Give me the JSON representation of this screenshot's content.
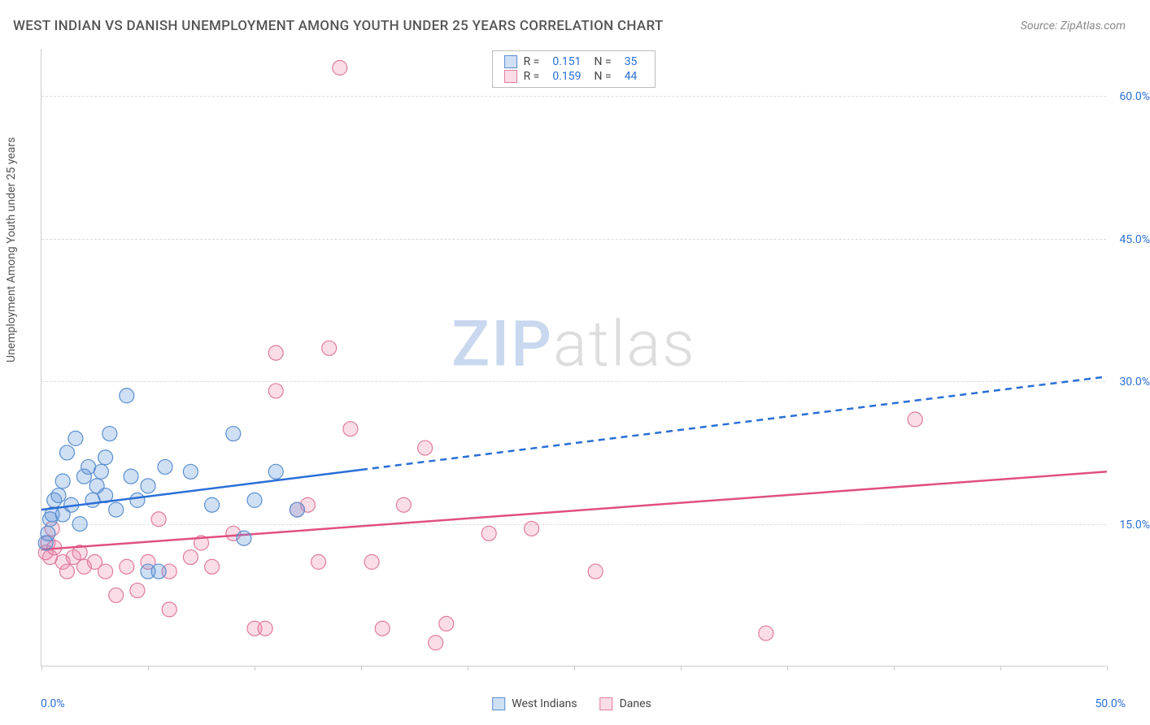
{
  "title": "WEST INDIAN VS DANISH UNEMPLOYMENT AMONG YOUTH UNDER 25 YEARS CORRELATION CHART",
  "source": "Source: ZipAtlas.com",
  "y_axis_title": "Unemployment Among Youth under 25 years",
  "watermark": {
    "part1": "ZIP",
    "part2": "atlas"
  },
  "chart": {
    "type": "scatter",
    "background_color": "#ffffff",
    "grid_color": "#dddddd",
    "axis_color": "#cccccc",
    "tick_label_color": "#2a6fd6",
    "xlim": [
      0,
      50
    ],
    "ylim": [
      0,
      65
    ],
    "x_ticks": [
      0,
      5,
      10,
      15,
      20,
      25,
      30,
      35,
      40,
      45,
      50
    ],
    "x_start_label": "0.0%",
    "x_end_label": "50.0%",
    "y_grid": [
      {
        "value": 15,
        "label": "15.0%"
      },
      {
        "value": 30,
        "label": "30.0%"
      },
      {
        "value": 45,
        "label": "45.0%"
      },
      {
        "value": 60,
        "label": "60.0%"
      }
    ],
    "marker_radius": 9,
    "marker_stroke_width": 1.2,
    "line_width": 2.5,
    "series": [
      {
        "name": "West Indians",
        "fill": "rgba(96,150,220,0.30)",
        "stroke": "#5a8fd0",
        "line_color": "#2a6fd6",
        "line_solid_to_x": 15,
        "R": "0.151",
        "N": "35",
        "trend": {
          "x1": 0,
          "y1": 16.5,
          "x2": 50,
          "y2": 30.5
        },
        "points": [
          [
            0.2,
            13.0
          ],
          [
            0.3,
            14.0
          ],
          [
            0.4,
            15.5
          ],
          [
            0.5,
            16.0
          ],
          [
            0.6,
            17.5
          ],
          [
            0.8,
            18.0
          ],
          [
            1.0,
            19.5
          ],
          [
            1.0,
            16.0
          ],
          [
            1.2,
            22.5
          ],
          [
            1.4,
            17.0
          ],
          [
            1.6,
            24.0
          ],
          [
            1.8,
            15.0
          ],
          [
            2.0,
            20.0
          ],
          [
            2.2,
            21.0
          ],
          [
            2.4,
            17.5
          ],
          [
            2.6,
            19.0
          ],
          [
            2.8,
            20.5
          ],
          [
            3.0,
            18.0
          ],
          [
            3.0,
            22.0
          ],
          [
            3.2,
            24.5
          ],
          [
            3.5,
            16.5
          ],
          [
            4.0,
            28.5
          ],
          [
            4.2,
            20.0
          ],
          [
            4.5,
            17.5
          ],
          [
            5.0,
            19.0
          ],
          [
            5.0,
            10.0
          ],
          [
            5.5,
            10.0
          ],
          [
            5.8,
            21.0
          ],
          [
            7.0,
            20.5
          ],
          [
            8.0,
            17.0
          ],
          [
            9.0,
            24.5
          ],
          [
            9.5,
            13.5
          ],
          [
            10.0,
            17.5
          ],
          [
            11.0,
            20.5
          ],
          [
            12.0,
            16.5
          ]
        ]
      },
      {
        "name": "Danes",
        "fill": "rgba(235,120,160,0.25)",
        "stroke": "#e07ba0",
        "line_color": "#e05080",
        "line_solid_to_x": 50,
        "R": "0.159",
        "N": "44",
        "trend": {
          "x1": 0,
          "y1": 12.3,
          "x2": 50,
          "y2": 20.5
        },
        "points": [
          [
            0.2,
            12.0
          ],
          [
            0.3,
            13.0
          ],
          [
            0.4,
            11.5
          ],
          [
            0.5,
            14.5
          ],
          [
            0.6,
            12.5
          ],
          [
            1.0,
            11.0
          ],
          [
            1.2,
            10.0
          ],
          [
            1.5,
            11.5
          ],
          [
            1.8,
            12.0
          ],
          [
            2.0,
            10.5
          ],
          [
            2.5,
            11.0
          ],
          [
            3.0,
            10.0
          ],
          [
            3.5,
            7.5
          ],
          [
            4.0,
            10.5
          ],
          [
            4.5,
            8.0
          ],
          [
            5.0,
            11.0
          ],
          [
            5.5,
            15.5
          ],
          [
            6.0,
            10.0
          ],
          [
            6.0,
            6.0
          ],
          [
            7.0,
            11.5
          ],
          [
            7.5,
            13.0
          ],
          [
            8.0,
            10.5
          ],
          [
            9.0,
            14.0
          ],
          [
            10.0,
            4.0
          ],
          [
            10.5,
            4.0
          ],
          [
            11.0,
            33.0
          ],
          [
            11.0,
            29.0
          ],
          [
            12.0,
            16.5
          ],
          [
            12.5,
            17.0
          ],
          [
            13.0,
            11.0
          ],
          [
            13.5,
            33.5
          ],
          [
            14.0,
            63.0
          ],
          [
            14.5,
            25.0
          ],
          [
            15.5,
            11.0
          ],
          [
            16.0,
            4.0
          ],
          [
            17.0,
            17.0
          ],
          [
            18.0,
            23.0
          ],
          [
            18.5,
            2.5
          ],
          [
            19.0,
            4.5
          ],
          [
            21.0,
            14.0
          ],
          [
            23.0,
            14.5
          ],
          [
            26.0,
            10.0
          ],
          [
            34.0,
            3.5
          ],
          [
            41.0,
            26.0
          ]
        ]
      }
    ]
  },
  "bottom_legend": [
    {
      "label": "West Indians",
      "fill": "rgba(96,150,220,0.30)",
      "stroke": "#5a8fd0"
    },
    {
      "label": "Danes",
      "fill": "rgba(235,120,160,0.25)",
      "stroke": "#e07ba0"
    }
  ]
}
